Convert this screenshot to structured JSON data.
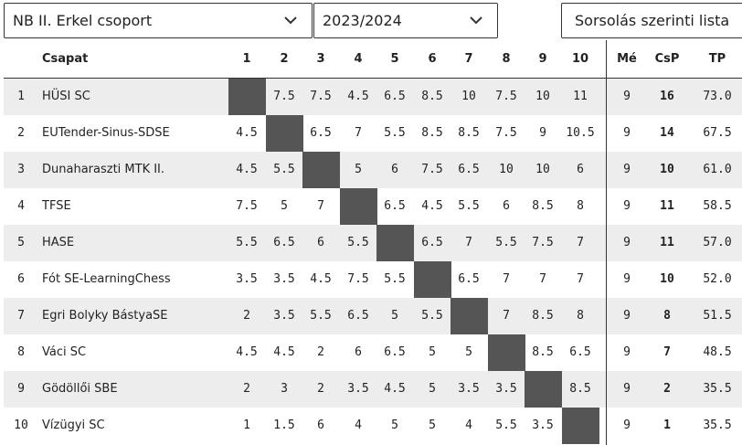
{
  "filters": {
    "group": "NB II. Erkel csoport",
    "season": "2023/2024",
    "order": "Sorsolás szerinti lista"
  },
  "table": {
    "headers": {
      "team": "Csapat",
      "rounds": [
        "1",
        "2",
        "3",
        "4",
        "5",
        "6",
        "7",
        "8",
        "9",
        "10"
      ],
      "played": "Mé",
      "match_points": "CsP",
      "board_points": "TP"
    },
    "rows": [
      {
        "rank": "1",
        "team": "HÜSI SC",
        "results": [
          "",
          "7.5",
          "7.5",
          "4.5",
          "6.5",
          "8.5",
          "10",
          "7.5",
          "10",
          "11"
        ],
        "played": "9",
        "match_points": "16",
        "board_points": "73.0"
      },
      {
        "rank": "2",
        "team": "EUTender-Sinus-SDSE",
        "results": [
          "4.5",
          "",
          "6.5",
          "7",
          "5.5",
          "8.5",
          "8.5",
          "7.5",
          "9",
          "10.5"
        ],
        "played": "9",
        "match_points": "14",
        "board_points": "67.5"
      },
      {
        "rank": "3",
        "team": "Dunaharaszti MTK II.",
        "results": [
          "4.5",
          "5.5",
          "",
          "5",
          "6",
          "7.5",
          "6.5",
          "10",
          "10",
          "6"
        ],
        "played": "9",
        "match_points": "10",
        "board_points": "61.0"
      },
      {
        "rank": "4",
        "team": "TFSE",
        "results": [
          "7.5",
          "5",
          "7",
          "",
          "6.5",
          "4.5",
          "5.5",
          "6",
          "8.5",
          "8"
        ],
        "played": "9",
        "match_points": "11",
        "board_points": "58.5"
      },
      {
        "rank": "5",
        "team": "HASE",
        "results": [
          "5.5",
          "6.5",
          "6",
          "5.5",
          "",
          "6.5",
          "7",
          "5.5",
          "7.5",
          "7"
        ],
        "played": "9",
        "match_points": "11",
        "board_points": "57.0"
      },
      {
        "rank": "6",
        "team": "Fót SE-LearningChess",
        "results": [
          "3.5",
          "3.5",
          "4.5",
          "7.5",
          "5.5",
          "",
          "6.5",
          "7",
          "7",
          "7"
        ],
        "played": "9",
        "match_points": "10",
        "board_points": "52.0"
      },
      {
        "rank": "7",
        "team": "Egri Bolyky BástyaSE",
        "results": [
          "2",
          "3.5",
          "5.5",
          "6.5",
          "5",
          "5.5",
          "",
          "7",
          "8.5",
          "8"
        ],
        "played": "9",
        "match_points": "8",
        "board_points": "51.5"
      },
      {
        "rank": "8",
        "team": "Váci SC",
        "results": [
          "4.5",
          "4.5",
          "2",
          "6",
          "6.5",
          "5",
          "5",
          "",
          "8.5",
          "6.5"
        ],
        "played": "9",
        "match_points": "7",
        "board_points": "48.5"
      },
      {
        "rank": "9",
        "team": "Gödöllői SBE",
        "results": [
          "2",
          "3",
          "2",
          "3.5",
          "4.5",
          "5",
          "3.5",
          "3.5",
          "",
          "8.5"
        ],
        "played": "9",
        "match_points": "2",
        "board_points": "35.5"
      },
      {
        "rank": "10",
        "team": "Vízügyi SC",
        "results": [
          "1",
          "1.5",
          "6",
          "4",
          "5",
          "5",
          "4",
          "5.5",
          "3.5",
          ""
        ],
        "played": "9",
        "match_points": "1",
        "board_points": "35.5"
      }
    ]
  },
  "colors": {
    "diagonal": "#555555",
    "row_shade": "#ededed",
    "border": "#333333"
  },
  "icons": [
    "chevron-down-icon"
  ]
}
